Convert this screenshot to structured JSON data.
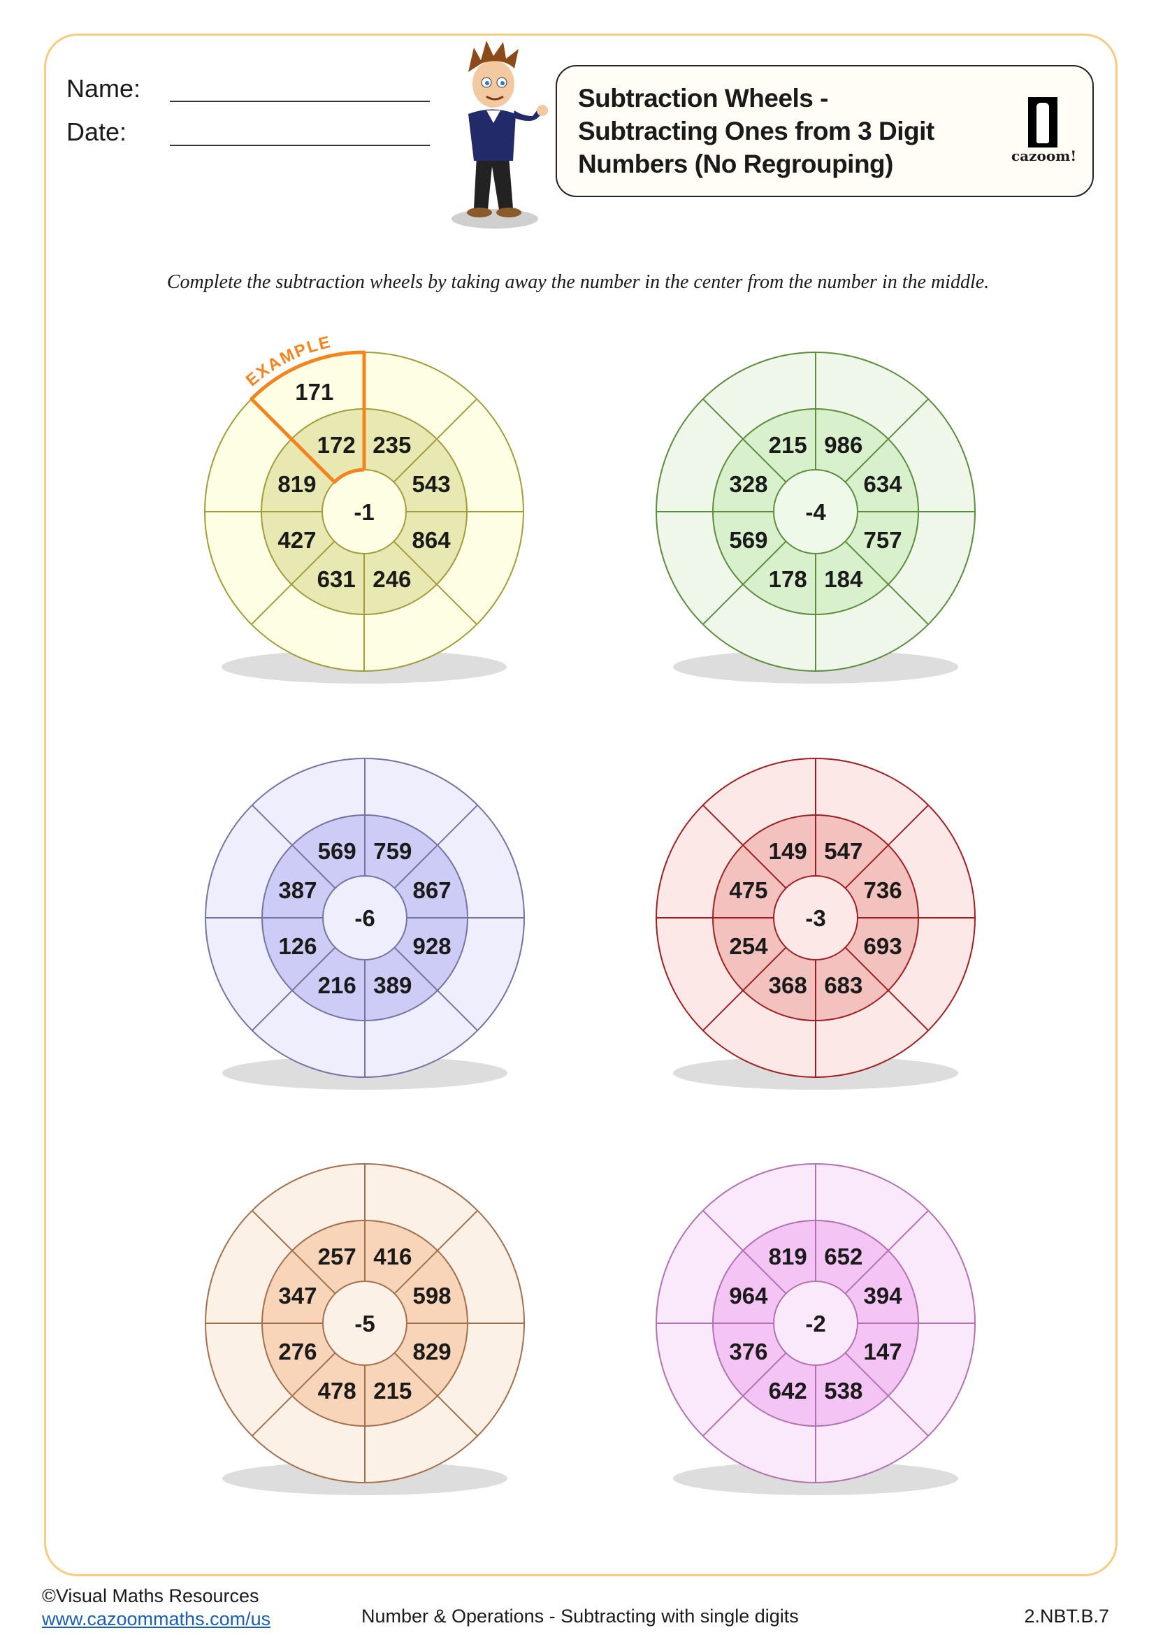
{
  "header": {
    "name_label": "Name:",
    "date_label": "Date:",
    "title_lines": [
      "Subtraction Wheels  -",
      "Subtracting Ones from 3 Digit",
      "Numbers (No Regrouping)"
    ],
    "logo_text": "cazoom!"
  },
  "instruction": "Complete the subtraction wheels by taking away the number in the center from the number in the middle.",
  "example_label": "EXAMPLE",
  "wheels": [
    {
      "center": "-1",
      "numbers": [
        "235",
        "543",
        "864",
        "246",
        "631",
        "427",
        "819",
        "172"
      ],
      "example_answer": "171",
      "colors": {
        "outer": "#fefee4",
        "middle": "#e8e8b2",
        "inner": "#fefee4",
        "stroke": "#a39c3a"
      }
    },
    {
      "center": "-4",
      "numbers": [
        "986",
        "634",
        "757",
        "184",
        "178",
        "569",
        "328",
        "215"
      ],
      "colors": {
        "outer": "#eff6ea",
        "middle": "#d8f0cc",
        "inner": "#eff9ea",
        "stroke": "#5c8c3c"
      }
    },
    {
      "center": "-6",
      "numbers": [
        "759",
        "867",
        "928",
        "389",
        "216",
        "126",
        "387",
        "569"
      ],
      "colors": {
        "outer": "#eeeefc",
        "middle": "#ccccf6",
        "inner": "#eeeefc",
        "stroke": "#7474a2"
      }
    },
    {
      "center": "-3",
      "numbers": [
        "547",
        "736",
        "693",
        "683",
        "368",
        "254",
        "475",
        "149"
      ],
      "colors": {
        "outer": "#fce9e7",
        "middle": "#f4c2be",
        "inner": "#fce9e7",
        "stroke": "#a01e22"
      }
    },
    {
      "center": "-5",
      "numbers": [
        "416",
        "598",
        "829",
        "215",
        "478",
        "276",
        "347",
        "257"
      ],
      "colors": {
        "outer": "#fcf1e6",
        "middle": "#f8d4b8",
        "inner": "#fcf1e6",
        "stroke": "#a2704c"
      }
    },
    {
      "center": "-2",
      "numbers": [
        "652",
        "394",
        "147",
        "538",
        "642",
        "376",
        "964",
        "819"
      ],
      "colors": {
        "outer": "#fae9fa",
        "middle": "#f4c4f4",
        "inner": "#fae9fa",
        "stroke": "#b072b0"
      }
    }
  ],
  "example_color": "#f5841f",
  "footer": {
    "copyright": "©Visual Maths Resources",
    "link": "www.cazoommaths.com/us",
    "topic": "Number & Operations - Subtracting with single digits",
    "code": "2.NBT.B.7"
  }
}
